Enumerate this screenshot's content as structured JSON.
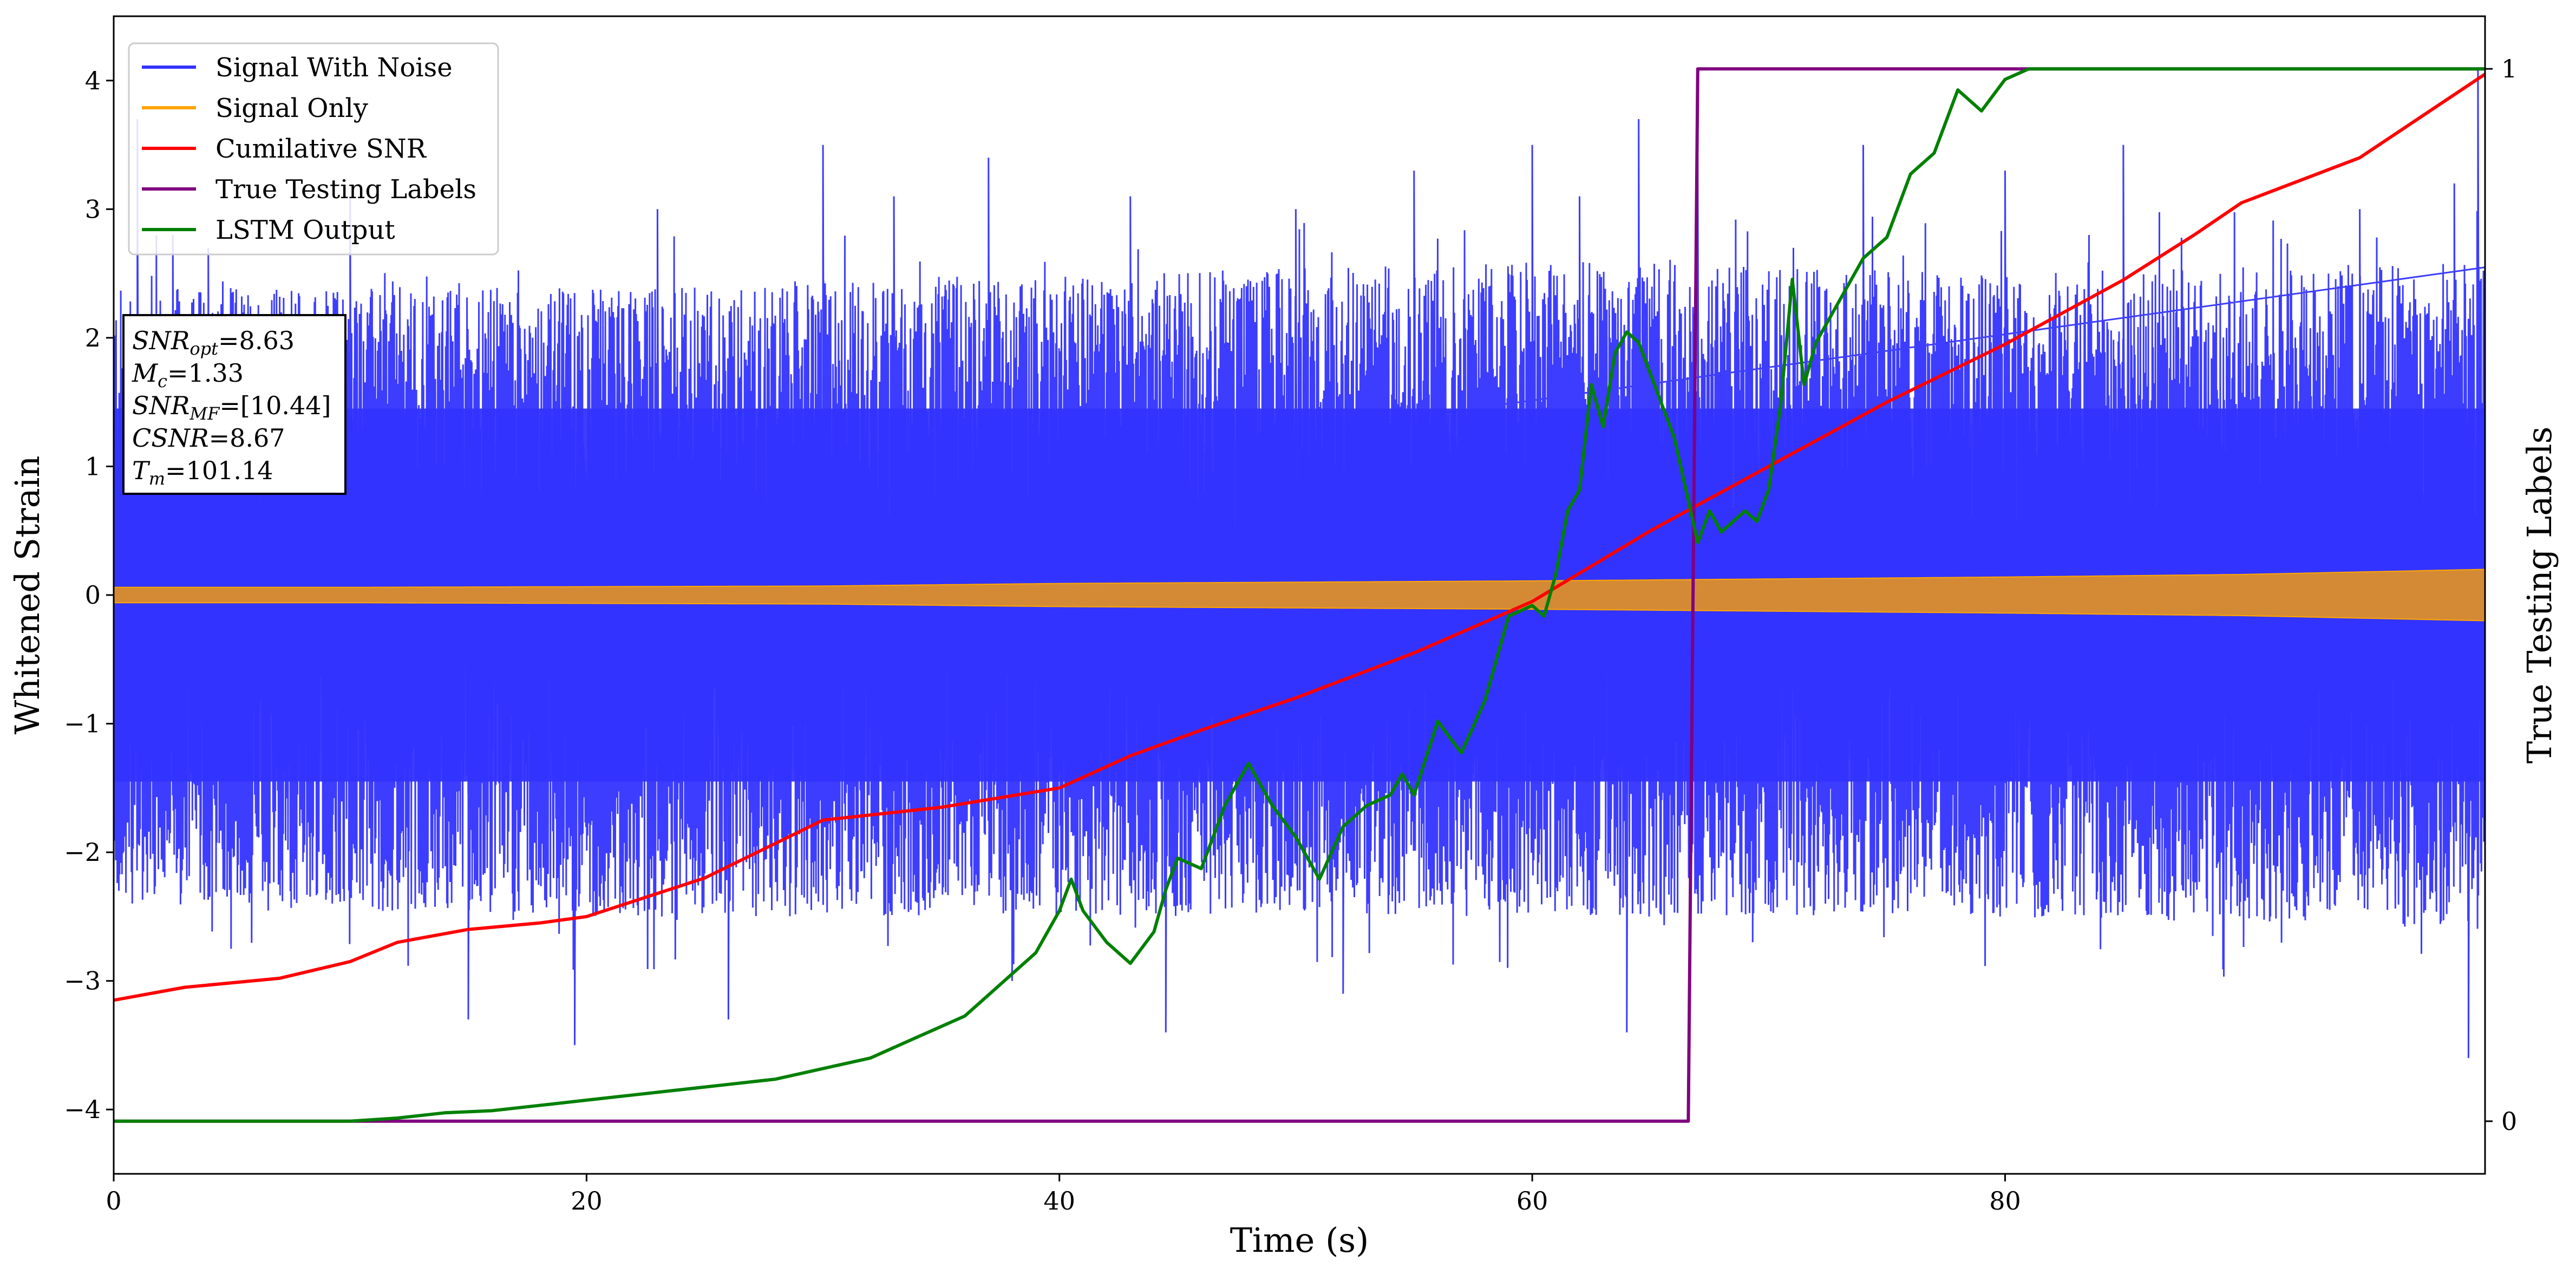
{
  "chart_data": {
    "type": "line",
    "xlabel": "Time (s)",
    "ylabel": "Whitened Strain",
    "ylabel_right": "True Testing Labels",
    "xlim": [
      0,
      100.3
    ],
    "ylim": [
      -4.5,
      4.5
    ],
    "ylim_right": [
      -0.05,
      1.05
    ],
    "x_ticks": [
      "0",
      "20",
      "40",
      "60",
      "80"
    ],
    "x_tick_values": [
      0,
      20,
      40,
      60,
      80
    ],
    "y_ticks": [
      "4",
      "3",
      "2",
      "1",
      "0",
      "−1",
      "−2",
      "−3",
      "−4"
    ],
    "y_tick_values": [
      4,
      3,
      2,
      1,
      0,
      -1,
      -2,
      -3,
      -4
    ],
    "y_right_ticks": [
      "1",
      "0"
    ],
    "y_right_tick_values": [
      1,
      0
    ],
    "grid": false,
    "legend_position": "top-left",
    "series": [
      {
        "name": "Signal With Noise",
        "axis": "left",
        "color": "#3333ff",
        "kind": "noise",
        "envelope": {
          "x": [
            0,
            20,
            40,
            60,
            80,
            100.3
          ],
          "high": [
            2.4,
            2.4,
            2.5,
            2.6,
            2.5,
            2.6
          ],
          "low": [
            -2.4,
            -2.5,
            -2.5,
            -2.5,
            -2.5,
            -2.6
          ]
        },
        "spikes": [
          [
            1,
            3.7
          ],
          [
            2.5,
            2.8
          ],
          [
            4,
            2.7
          ],
          [
            10,
            3.1
          ],
          [
            15,
            -3.3
          ],
          [
            19.5,
            -3.5
          ],
          [
            23,
            3.0
          ],
          [
            26,
            -3.3
          ],
          [
            30,
            3.5
          ],
          [
            33,
            3.1
          ],
          [
            37,
            3.4
          ],
          [
            38,
            -3.0
          ],
          [
            43,
            3.1
          ],
          [
            44.5,
            -3.4
          ],
          [
            50,
            3.0
          ],
          [
            52,
            -3.1
          ],
          [
            55,
            3.3
          ],
          [
            60,
            3.5
          ],
          [
            62,
            3.1
          ],
          [
            64,
            -3.4
          ],
          [
            64.5,
            3.7
          ],
          [
            67,
            3.4
          ],
          [
            74,
            3.5
          ],
          [
            80,
            3.3
          ],
          [
            85,
            3.5
          ],
          [
            95,
            3.0
          ],
          [
            99,
            3.2
          ],
          [
            99.6,
            -3.6
          ],
          [
            100,
            4.1
          ]
        ]
      },
      {
        "name": "Signal Only",
        "axis": "left",
        "color": "#ffa500",
        "kind": "band",
        "envelope": {
          "x": [
            0,
            10,
            30,
            40,
            60,
            80,
            90,
            100.3
          ],
          "amp": [
            0.06,
            0.06,
            0.07,
            0.09,
            0.11,
            0.14,
            0.16,
            0.2
          ]
        }
      },
      {
        "name": "Cumilative SNR",
        "axis": "left",
        "color": "#ff0000",
        "kind": "line",
        "x": [
          0,
          3,
          7,
          10,
          12,
          15,
          18,
          20,
          25,
          30,
          35,
          40,
          43,
          46,
          50,
          55,
          60,
          65,
          70,
          75,
          80,
          85,
          88,
          90,
          95,
          100.3
        ],
        "y": [
          -3.15,
          -3.05,
          -2.98,
          -2.85,
          -2.7,
          -2.6,
          -2.55,
          -2.5,
          -2.2,
          -1.75,
          -1.65,
          -1.5,
          -1.25,
          -1.05,
          -0.8,
          -0.45,
          -0.05,
          0.5,
          1.0,
          1.5,
          1.95,
          2.45,
          2.8,
          3.05,
          3.4,
          4.05
        ]
      },
      {
        "name": "True Testing Labels",
        "axis": "right",
        "color": "#800080",
        "kind": "line",
        "x": [
          0,
          66.6,
          67.0,
          100.3
        ],
        "y": [
          0,
          0,
          1,
          1
        ]
      },
      {
        "name": "LSTM Output",
        "axis": "right",
        "color": "#008000",
        "kind": "line",
        "x": [
          0,
          10,
          12,
          14,
          16,
          18,
          20,
          22,
          24,
          26,
          28,
          30,
          32,
          34,
          36,
          37,
          38,
          39,
          40,
          40.5,
          41,
          42,
          43,
          44,
          44.5,
          45,
          46,
          47,
          48,
          49,
          50,
          51,
          52,
          53,
          54,
          54.5,
          55,
          56,
          57,
          58,
          59,
          60,
          60.5,
          61,
          61.5,
          62,
          62.5,
          63,
          63.5,
          64,
          64.5,
          65,
          66,
          67,
          67.5,
          68,
          69,
          69.5,
          70,
          70.5,
          71,
          71.5,
          72,
          73,
          74,
          75,
          76,
          77,
          78,
          79,
          80,
          81,
          83,
          85,
          87,
          100.3
        ],
        "y": [
          0,
          0,
          0.003,
          0.008,
          0.01,
          0.015,
          0.02,
          0.025,
          0.03,
          0.035,
          0.04,
          0.05,
          0.06,
          0.08,
          0.1,
          0.12,
          0.14,
          0.16,
          0.2,
          0.23,
          0.2,
          0.17,
          0.15,
          0.18,
          0.22,
          0.25,
          0.24,
          0.3,
          0.34,
          0.3,
          0.27,
          0.23,
          0.28,
          0.3,
          0.31,
          0.33,
          0.31,
          0.38,
          0.35,
          0.4,
          0.48,
          0.49,
          0.48,
          0.52,
          0.58,
          0.6,
          0.7,
          0.66,
          0.73,
          0.75,
          0.74,
          0.71,
          0.65,
          0.55,
          0.58,
          0.56,
          0.58,
          0.57,
          0.6,
          0.68,
          0.8,
          0.7,
          0.74,
          0.78,
          0.82,
          0.84,
          0.9,
          0.92,
          0.98,
          0.96,
          0.99,
          1.0,
          1.0,
          1.0,
          1.0,
          1.0
        ]
      }
    ],
    "annotation": {
      "lines": [
        {
          "main": "SNR",
          "sub": "opt",
          "rest": "=8.63"
        },
        {
          "main": "M",
          "sub": "c",
          "rest": "=1.33"
        },
        {
          "main": "SNR",
          "sub": "MF",
          "rest": "=[10.44]"
        },
        {
          "main": "CSNR",
          "sub": "",
          "rest": "=8.67"
        },
        {
          "main": "T",
          "sub": "m",
          "rest": "=101.14"
        }
      ]
    }
  }
}
